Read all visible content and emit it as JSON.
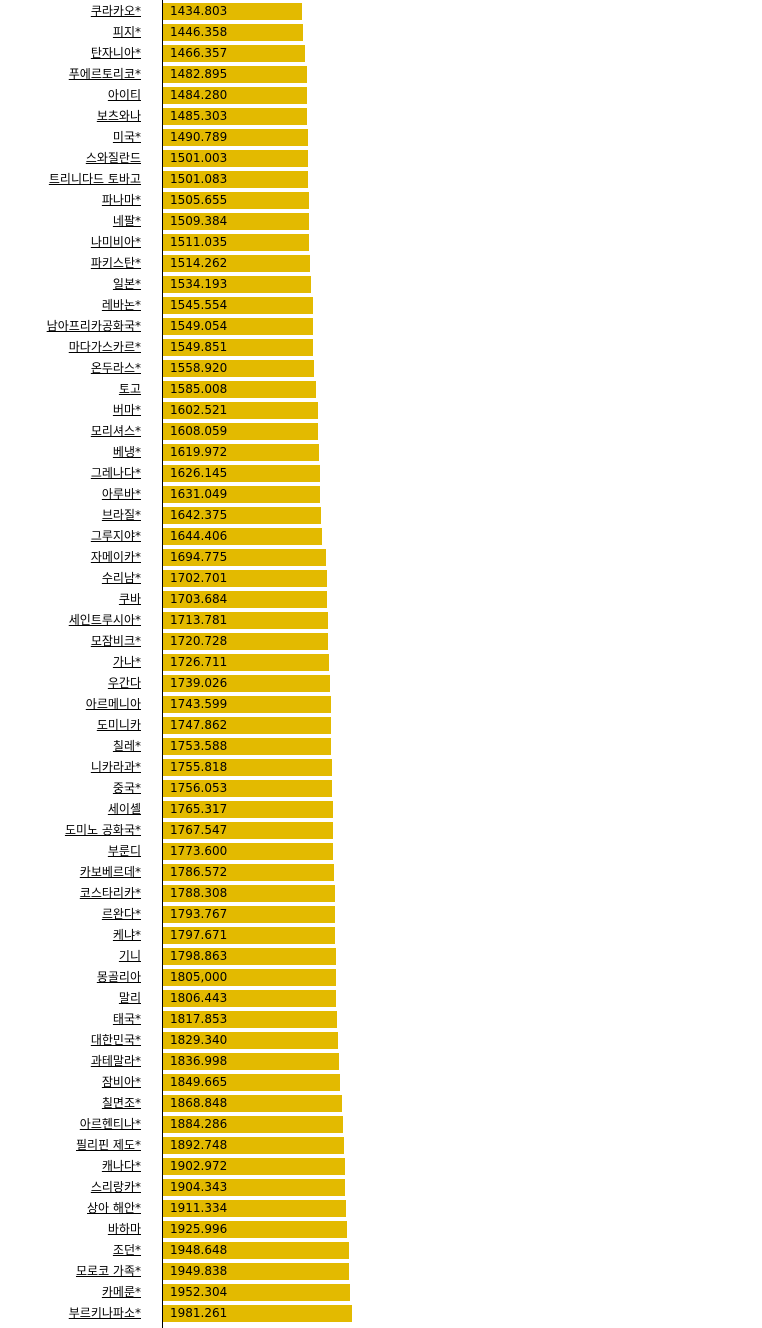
{
  "chart_data": {
    "type": "bar",
    "orientation": "horizontal",
    "bar_color": "#e3ba00",
    "categories": [
      "쿠라카오*",
      "피지*",
      "탄자니아*",
      "푸에르토리코*",
      "아이티",
      "보츠와나",
      "미국*",
      "스와질란드",
      "트리니다드 토바고",
      "파나마*",
      "네팔*",
      "나미비아*",
      "파키스탄*",
      "일본*",
      "레바논*",
      "남아프리카공화국*",
      "마다가스카르*",
      "온두라스*",
      "토고",
      "버마*",
      "모리셔스*",
      "베냉*",
      "그레나다*",
      "아루바*",
      "브라질*",
      "그루지야*",
      "자메이카*",
      "수리남*",
      "쿠바",
      "세인트루시아*",
      "모잠비크*",
      "가나*",
      "우간다",
      "아르메니아",
      "도미니카",
      "칠레*",
      "니카라과*",
      "중국*",
      "세이셸",
      "도미노 공화국*",
      "부룬디",
      "카보베르데*",
      "코스타리카*",
      "르완다*",
      "케냐*",
      "기니",
      "몽골리아",
      "말리",
      "태국*",
      "대한민국*",
      "과테말라*",
      "잠비아*",
      "칠면조*",
      "아르헨티나*",
      "필리핀 제도*",
      "캐나다*",
      "스리랑카*",
      "상아 해안*",
      "바하마",
      "조던*",
      "모로코 가족*",
      "카메룬*",
      "부르키나파소*"
    ],
    "value_labels": [
      "1434.803",
      "1446.358",
      "1466.357",
      "1482.895",
      "1484.280",
      "1485.303",
      "1490.789",
      "1501.003",
      "1501.083",
      "1505.655",
      "1509.384",
      "1511.035",
      "1514.262",
      "1534.193",
      "1545.554",
      "1549.054",
      "1549.851",
      "1558.920",
      "1585.008",
      "1602.521",
      "1608.059",
      "1619.972",
      "1626.145",
      "1631.049",
      "1642.375",
      "1644.406",
      "1694.775",
      "1702.701",
      "1703.684",
      "1713.781",
      "1720.728",
      "1726.711",
      "1739.026",
      "1743.599",
      "1747.862",
      "1753.588",
      "1755.818",
      "1756.053",
      "1765.317",
      "1767.547",
      "1773.600",
      "1786.572",
      "1788.308",
      "1793.767",
      "1797.671",
      "1798.863",
      "1805,000",
      "1806.443",
      "1817.853",
      "1829.340",
      "1836.998",
      "1849.665",
      "1868.848",
      "1884.286",
      "1892.748",
      "1902.972",
      "1904.343",
      "1911.334",
      "1925.996",
      "1948.648",
      "1949.838",
      "1952.304",
      "1981.261"
    ],
    "values": [
      1434.803,
      1446.358,
      1466.357,
      1482.895,
      1484.28,
      1485.303,
      1490.789,
      1501.003,
      1501.083,
      1505.655,
      1509.384,
      1511.035,
      1514.262,
      1534.193,
      1545.554,
      1549.054,
      1549.851,
      1558.92,
      1585.008,
      1602.521,
      1608.059,
      1619.972,
      1626.145,
      1631.049,
      1642.375,
      1644.406,
      1694.775,
      1702.701,
      1703.684,
      1713.781,
      1720.728,
      1726.711,
      1739.026,
      1743.599,
      1747.862,
      1753.588,
      1755.818,
      1756.053,
      1765.317,
      1767.547,
      1773.6,
      1786.572,
      1788.308,
      1793.767,
      1797.671,
      1798.863,
      1805.0,
      1806.443,
      1817.853,
      1829.34,
      1836.998,
      1849.665,
      1868.848,
      1884.286,
      1892.748,
      1902.972,
      1904.343,
      1911.334,
      1925.996,
      1948.648,
      1949.838,
      1952.304,
      1981.261
    ],
    "title": "",
    "xlabel": "",
    "ylabel": ""
  }
}
